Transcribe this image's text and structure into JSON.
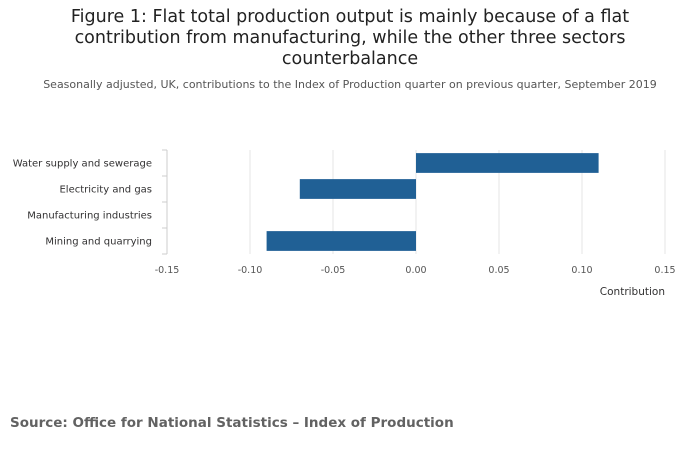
{
  "chart_data": {
    "type": "bar",
    "orientation": "horizontal",
    "title": "Figure 1: Flat total production output is mainly because of a flat contribution from manufacturing, while the other three sectors counterbalance",
    "subtitle": "Seasonally adjusted, UK, contributions to the Index of Production quarter on previous quarter, September 2019",
    "categories": [
      "Water supply and sewerage",
      "Electricity and gas",
      "Manufacturing industries",
      "Mining and quarrying"
    ],
    "values": [
      0.11,
      -0.07,
      0.0,
      -0.09
    ],
    "xlabel": "Contribution",
    "ylabel": "",
    "xlim": [
      -0.15,
      0.15
    ],
    "xticks": [
      -0.15,
      -0.1,
      -0.05,
      0.0,
      0.05,
      0.1,
      0.15
    ],
    "xtick_labels": [
      "-0.15",
      "-0.10",
      "-0.05",
      "0.00",
      "0.05",
      "0.10",
      "0.15"
    ],
    "bar_color": "#206095",
    "grid": true,
    "source": "Source: Office for National Statistics – Index of Production"
  }
}
